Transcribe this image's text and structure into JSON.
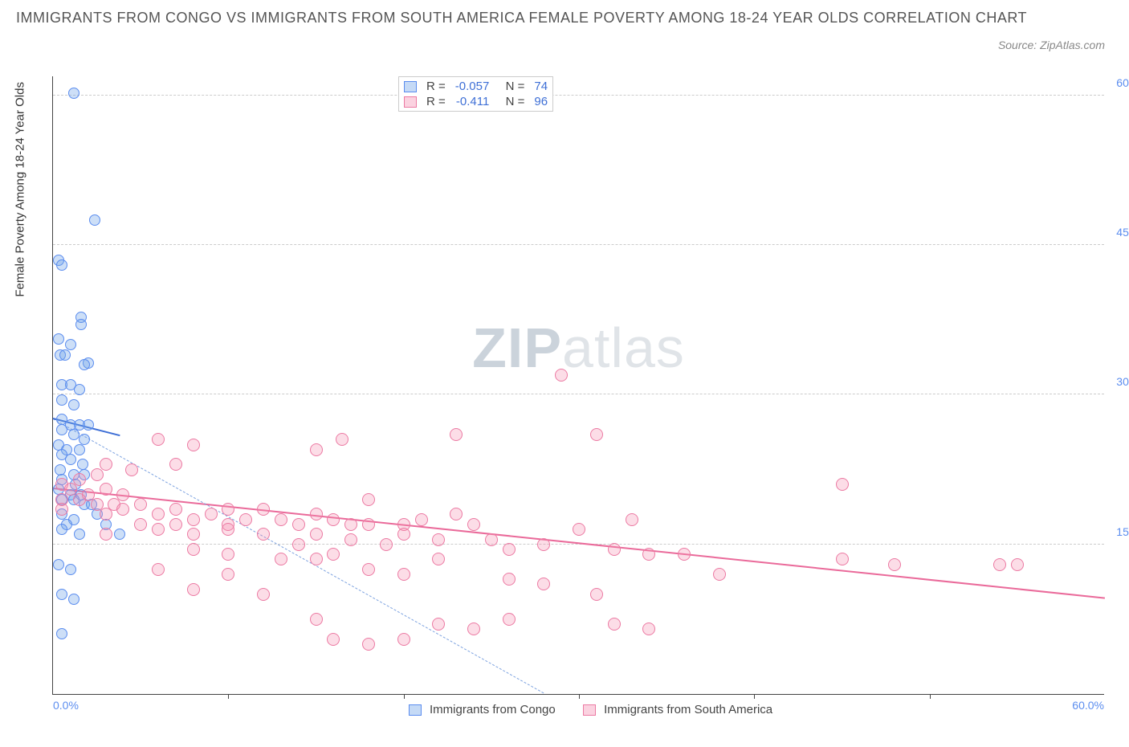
{
  "title": "IMMIGRANTS FROM CONGO VS IMMIGRANTS FROM SOUTH AMERICA FEMALE POVERTY AMONG 18-24 YEAR OLDS CORRELATION CHART",
  "source_label": "Source: ZipAtlas.com",
  "watermark": {
    "bold": "ZIP",
    "rest": "atlas"
  },
  "chart": {
    "type": "scatter",
    "background_color": "#ffffff",
    "grid_color": "#cccccc",
    "axis_color": "#444444",
    "label_fontsize": 15,
    "tick_fontsize": 14,
    "tick_color": "#5b8def",
    "ylabel": "Female Poverty Among 18-24 Year Olds",
    "xlim": [
      0,
      60
    ],
    "ylim": [
      0,
      62
    ],
    "yticks": [
      15.0,
      30.0,
      45.0,
      60.0
    ],
    "ytick_labels": [
      "15.0%",
      "30.0%",
      "45.0%",
      "60.0%"
    ],
    "xtick_visible": {
      "left": "0.0%",
      "right": "60.0%"
    },
    "xtick_marks": [
      10,
      20,
      30,
      40,
      50
    ],
    "marker_style": "circle",
    "marker_size_blue": 14,
    "marker_size_pink": 16,
    "marker_opacity": 0.35,
    "series": [
      {
        "name": "Immigrants from Congo",
        "key": "blue",
        "color_fill": "rgba(111,163,232,0.35)",
        "color_stroke": "#5b8def",
        "stats": {
          "R": "-0.057",
          "N": "74"
        },
        "trend_solid": {
          "x1": 0,
          "y1": 27.5,
          "x2": 3.8,
          "y2": 25.8,
          "color": "#3e6fd6",
          "width": 2
        },
        "trend_dashed": {
          "x1": 0,
          "y1": 27.5,
          "x2": 28,
          "y2": 0,
          "color": "#7ea3e0"
        },
        "points": [
          [
            1.2,
            60.2
          ],
          [
            2.4,
            47.5
          ],
          [
            0.3,
            43.5
          ],
          [
            0.5,
            43.0
          ],
          [
            1.6,
            37.8
          ],
          [
            1.6,
            37.0
          ],
          [
            0.3,
            35.6
          ],
          [
            1.0,
            35.0
          ],
          [
            0.4,
            34.0
          ],
          [
            0.7,
            34.0
          ],
          [
            2.0,
            33.2
          ],
          [
            1.8,
            33.0
          ],
          [
            0.5,
            31.0
          ],
          [
            1.0,
            31.0
          ],
          [
            1.5,
            30.5
          ],
          [
            0.5,
            29.5
          ],
          [
            1.2,
            29.0
          ],
          [
            0.5,
            27.5
          ],
          [
            1.0,
            27.0
          ],
          [
            1.5,
            27.0
          ],
          [
            2.0,
            27.0
          ],
          [
            0.5,
            26.5
          ],
          [
            1.2,
            26.0
          ],
          [
            1.8,
            25.5
          ],
          [
            0.3,
            25.0
          ],
          [
            0.8,
            24.5
          ],
          [
            1.5,
            24.5
          ],
          [
            0.5,
            24.0
          ],
          [
            1.0,
            23.5
          ],
          [
            1.7,
            23.0
          ],
          [
            0.4,
            22.5
          ],
          [
            1.2,
            22.0
          ],
          [
            1.8,
            22.0
          ],
          [
            0.5,
            21.5
          ],
          [
            1.3,
            21.0
          ],
          [
            0.3,
            20.5
          ],
          [
            1.0,
            20.0
          ],
          [
            1.6,
            20.0
          ],
          [
            0.5,
            19.5
          ],
          [
            1.2,
            19.5
          ],
          [
            1.8,
            19.0
          ],
          [
            2.2,
            19.0
          ],
          [
            0.5,
            18.0
          ],
          [
            2.5,
            18.0
          ],
          [
            1.2,
            17.5
          ],
          [
            0.8,
            17.0
          ],
          [
            3.0,
            17.0
          ],
          [
            0.5,
            16.5
          ],
          [
            1.5,
            16.0
          ],
          [
            3.8,
            16.0
          ],
          [
            0.3,
            13.0
          ],
          [
            1.0,
            12.5
          ],
          [
            0.5,
            10.0
          ],
          [
            1.2,
            9.5
          ],
          [
            0.5,
            6.0
          ]
        ]
      },
      {
        "name": "Immigrants from South America",
        "key": "pink",
        "color_fill": "rgba(244,143,177,0.30)",
        "color_stroke": "#ec7aa3",
        "stats": {
          "R": "-0.411",
          "N": "96"
        },
        "trend_solid": {
          "x1": 0,
          "y1": 20.5,
          "x2": 60,
          "y2": 9.5,
          "color": "#ea6a9a",
          "width": 2.5
        },
        "points": [
          [
            29,
            32.0
          ],
          [
            6,
            25.5
          ],
          [
            8,
            25.0
          ],
          [
            15,
            24.5
          ],
          [
            16.5,
            25.5
          ],
          [
            23,
            26.0
          ],
          [
            31,
            26.0
          ],
          [
            3,
            23.0
          ],
          [
            4.5,
            22.5
          ],
          [
            7,
            23.0
          ],
          [
            0.5,
            21.0
          ],
          [
            1.5,
            21.5
          ],
          [
            2.5,
            22.0
          ],
          [
            1.0,
            20.5
          ],
          [
            2.0,
            20.0
          ],
          [
            3.0,
            20.5
          ],
          [
            4.0,
            20.0
          ],
          [
            0.5,
            19.5
          ],
          [
            1.5,
            19.5
          ],
          [
            2.5,
            19.0
          ],
          [
            3.5,
            19.0
          ],
          [
            5,
            19.0
          ],
          [
            0.5,
            18.5
          ],
          [
            3,
            18.0
          ],
          [
            4,
            18.5
          ],
          [
            6,
            18.0
          ],
          [
            7,
            18.5
          ],
          [
            8,
            17.5
          ],
          [
            9,
            18.0
          ],
          [
            10,
            18.5
          ],
          [
            11,
            17.5
          ],
          [
            12,
            18.5
          ],
          [
            15,
            18.0
          ],
          [
            5,
            17.0
          ],
          [
            7,
            17.0
          ],
          [
            10,
            17.0
          ],
          [
            13,
            17.5
          ],
          [
            14,
            17.0
          ],
          [
            16,
            17.5
          ],
          [
            17,
            17.0
          ],
          [
            18,
            17.0
          ],
          [
            18,
            19.5
          ],
          [
            20,
            17.0
          ],
          [
            21,
            17.5
          ],
          [
            23,
            18.0
          ],
          [
            24,
            17.0
          ],
          [
            3,
            16.0
          ],
          [
            6,
            16.5
          ],
          [
            8,
            16.0
          ],
          [
            10,
            16.5
          ],
          [
            12,
            16.0
          ],
          [
            14,
            15.0
          ],
          [
            15,
            16.0
          ],
          [
            17,
            15.5
          ],
          [
            19,
            15.0
          ],
          [
            20,
            16.0
          ],
          [
            22,
            15.5
          ],
          [
            25,
            15.5
          ],
          [
            26,
            14.5
          ],
          [
            28,
            15.0
          ],
          [
            30,
            16.5
          ],
          [
            32,
            14.5
          ],
          [
            33,
            17.5
          ],
          [
            34,
            14.0
          ],
          [
            36,
            14.0
          ],
          [
            8,
            14.5
          ],
          [
            10,
            14.0
          ],
          [
            13,
            13.5
          ],
          [
            15,
            13.5
          ],
          [
            16,
            14.0
          ],
          [
            22,
            13.5
          ],
          [
            45,
            21.0
          ],
          [
            45,
            13.5
          ],
          [
            48,
            13.0
          ],
          [
            54,
            13.0
          ],
          [
            55,
            13.0
          ],
          [
            6,
            12.5
          ],
          [
            10,
            12.0
          ],
          [
            18,
            12.5
          ],
          [
            20,
            12.0
          ],
          [
            26,
            11.5
          ],
          [
            28,
            11.0
          ],
          [
            8,
            10.5
          ],
          [
            12,
            10.0
          ],
          [
            31,
            10.0
          ],
          [
            38,
            12.0
          ],
          [
            22,
            7.0
          ],
          [
            24,
            6.5
          ],
          [
            26,
            7.5
          ],
          [
            32,
            7.0
          ],
          [
            34,
            6.5
          ],
          [
            16,
            5.5
          ],
          [
            18,
            5.0
          ],
          [
            20,
            5.5
          ],
          [
            15,
            7.5
          ]
        ]
      }
    ],
    "legend_bottom": [
      {
        "swatch": "blue",
        "label": "Immigrants from Congo"
      },
      {
        "swatch": "pink",
        "label": "Immigrants from South America"
      }
    ]
  }
}
